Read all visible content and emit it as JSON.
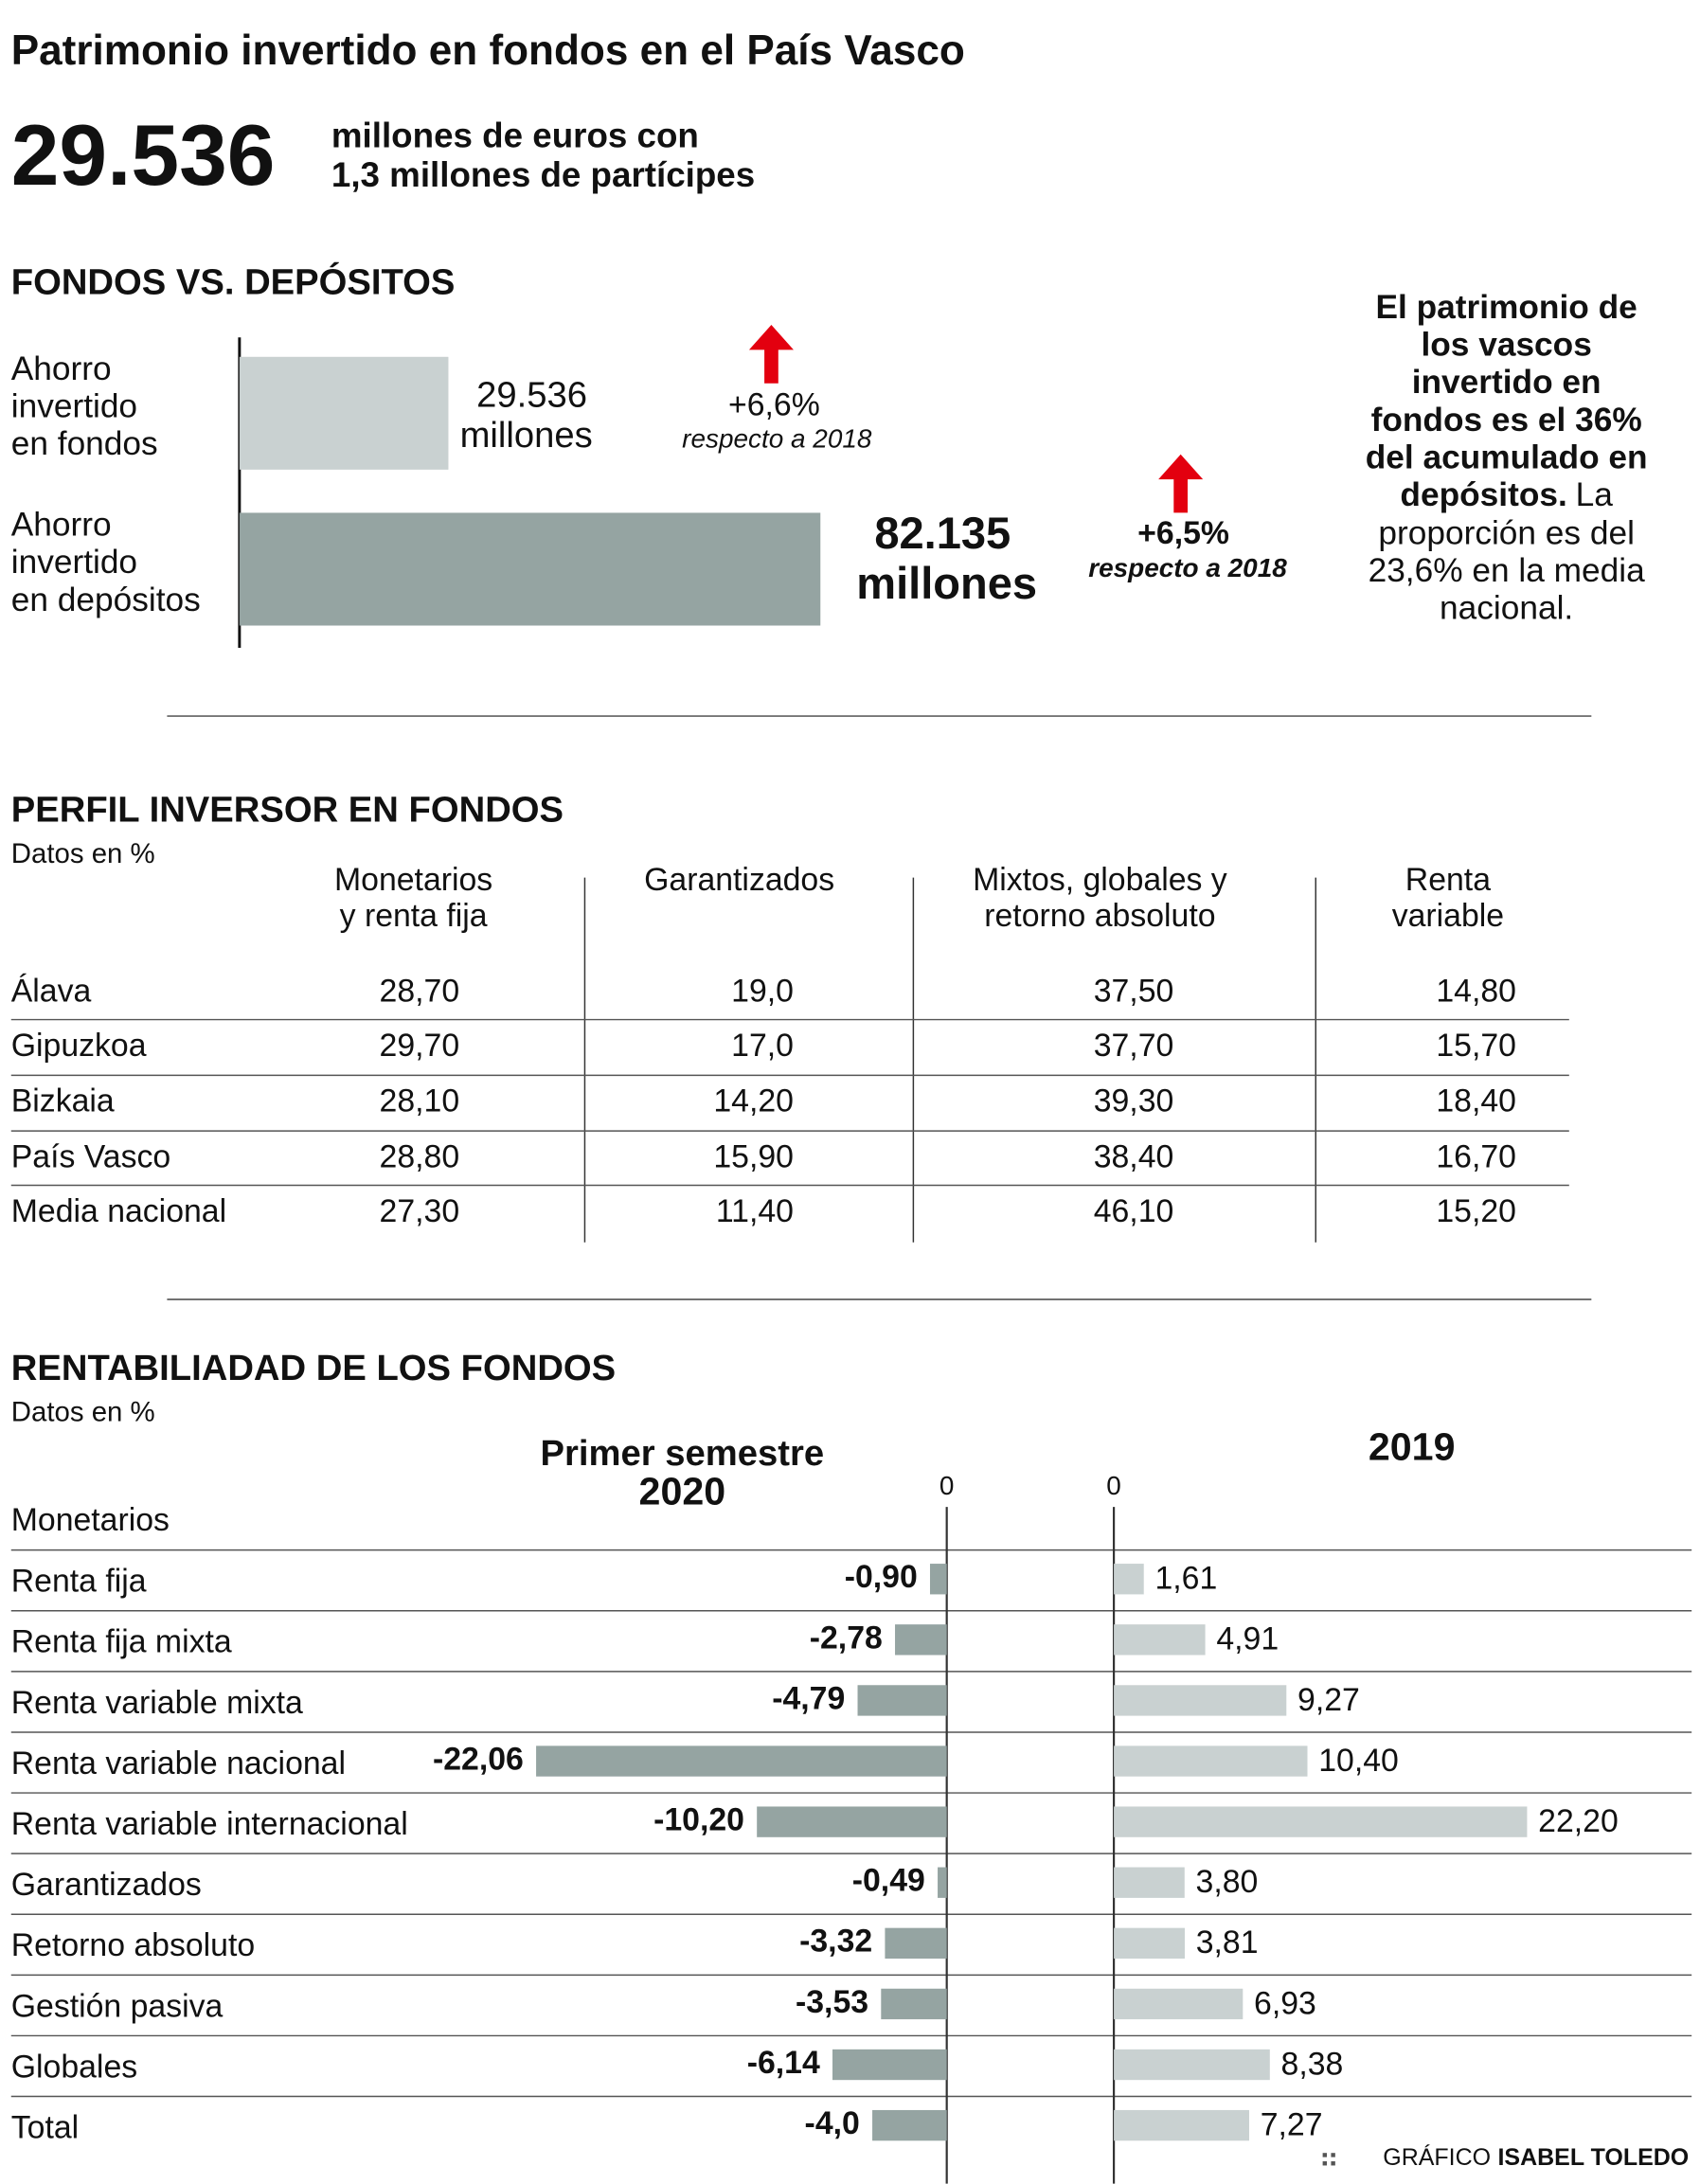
{
  "header": {
    "title": "Patrimonio invertido en fondos en el País Vasco",
    "figure": "29.536",
    "figure_text": [
      "millones de euros con",
      "1,3 millones de partícipes"
    ]
  },
  "chart_data": [
    {
      "type": "bar",
      "orientation": "horizontal",
      "title": "FONDOS VS. DEPÓSITOS",
      "categories": [
        [
          "Ahorro",
          "invertido",
          "en fondos"
        ],
        [
          "Ahorro",
          "invertido",
          "en depósitos"
        ]
      ],
      "values": [
        29536,
        82135
      ],
      "value_labels": [
        [
          "29.536",
          "millones"
        ],
        [
          "82.135",
          "millones"
        ]
      ],
      "colors": [
        "#c9d1d1",
        "#95a4a2"
      ],
      "xlim": [
        0,
        100000
      ],
      "annotations": [
        {
          "change": "+6,6%",
          "note": "respecto a 2018"
        },
        {
          "change": "+6,5%",
          "note": "respecto a 2018"
        }
      ],
      "arrow_color": "#e3000f",
      "note": {
        "bold": [
          "El patrimonio de",
          "los vascos",
          "invertido en",
          "fondos es el 36%",
          "del acumulado en",
          "depósitos."
        ],
        "regular": [
          "La",
          "proporción es del",
          "23,6% en la media",
          "nacional."
        ]
      }
    },
    {
      "type": "diverging_bar",
      "title": "RENTABILIADAD DE LOS FONDOS",
      "subtitle": "Datos en %",
      "group": "Monetarios",
      "categories": [
        "Renta fija",
        "Renta fija mixta",
        "Renta variable mixta",
        "Renta variable nacional",
        "Renta variable internacional",
        "Garantizados",
        "Retorno absoluto",
        "Gestión pasiva",
        "Globales",
        "Total"
      ],
      "series": [
        {
          "name": [
            "Primer semestre",
            "2020"
          ],
          "color": "#95a4a2",
          "values": [
            -0.9,
            -2.78,
            -4.79,
            -22.06,
            -10.2,
            -0.49,
            -3.32,
            -3.53,
            -6.14,
            -4.0
          ],
          "value_labels": [
            "-0,90",
            "-2,78",
            "-4,79",
            "-22,06",
            "-10,20",
            "-0,49",
            "-3,32",
            "-3,53",
            "-6,14",
            "-4,0"
          ],
          "xlim": [
            -25,
            0
          ],
          "xticks": [
            0
          ]
        },
        {
          "name": [
            "2019"
          ],
          "color": "#c9d1d1",
          "values": [
            1.61,
            4.91,
            9.27,
            10.4,
            22.2,
            3.8,
            3.81,
            6.93,
            8.38,
            7.27
          ],
          "value_labels": [
            "1,61",
            "4,91",
            "9,27",
            "10,40",
            "22,20",
            "3,80",
            "3,81",
            "6,93",
            "8,38",
            "7,27"
          ],
          "xlim": [
            0,
            30
          ],
          "xticks": [
            0
          ]
        }
      ]
    }
  ],
  "table": {
    "title": "PERFIL INVERSOR EN FONDOS",
    "subtitle": "Datos en %",
    "columns": [
      [
        "Monetarios",
        "y renta fija"
      ],
      [
        "Garantizados"
      ],
      [
        "Mixtos, globales y",
        "retorno absoluto"
      ],
      [
        "Renta",
        "variable"
      ]
    ],
    "rows": [
      [
        "Álava",
        "28,70",
        "19,0",
        "37,50",
        "14,80"
      ],
      [
        "Gipuzkoa",
        "29,70",
        "17,0",
        "37,70",
        "15,70"
      ],
      [
        "Bizkaia",
        "28,10",
        "14,20",
        "39,30",
        "18,40"
      ],
      [
        "País Vasco",
        "28,80",
        "15,90",
        "38,40",
        "16,70"
      ],
      [
        "Media nacional",
        "27,30",
        "11,40",
        "46,10",
        "15,20"
      ]
    ]
  },
  "footer": {
    "label": "GRÁFICO",
    "author": "ISABEL TOLEDO"
  }
}
